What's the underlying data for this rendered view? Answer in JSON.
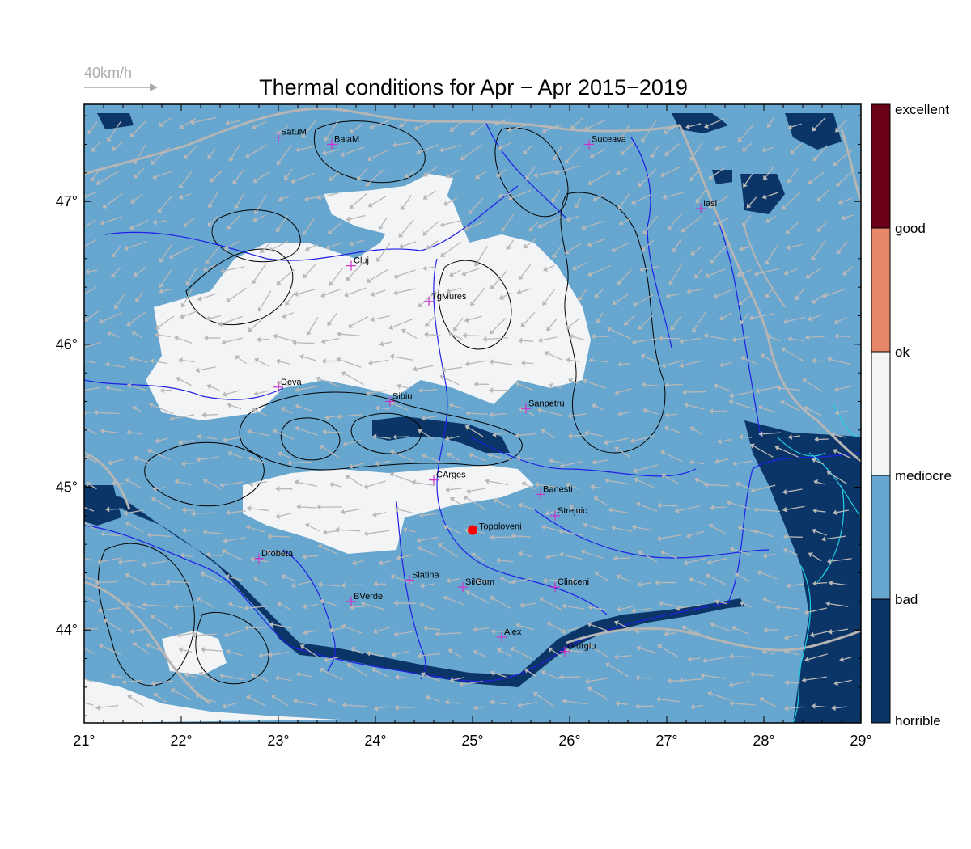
{
  "title": "Thermal conditions for Apr − Apr  2015−2019",
  "wind_reference": "40km/h",
  "colors": {
    "horrible": "#0b3566",
    "bad": "#67a6ce",
    "mediocre": "#f3f4f6",
    "ok": "#e6876a",
    "good": "#b73d3d",
    "excellent": "#6a0119",
    "river": "#1f1fe6",
    "border": "#b5b5b5",
    "wind_arrow": "#b8b8b8",
    "city_marker": "#cc33cc",
    "highlight_marker": "#ff0000"
  },
  "x_ticks": [
    "21°",
    "22°",
    "23°",
    "24°",
    "25°",
    "26°",
    "27°",
    "28°",
    "29°"
  ],
  "y_ticks": [
    "47°",
    "46°",
    "45°",
    "44°"
  ],
  "colorbar": {
    "labels": [
      "excellent",
      "good",
      "ok",
      "mediocre",
      "bad",
      "horrible"
    ]
  },
  "cities": [
    {
      "name": "SatuM",
      "lon": 23.0,
      "lat": 47.45
    },
    {
      "name": "BaiaM",
      "lon": 23.55,
      "lat": 47.4
    },
    {
      "name": "Suceava",
      "lon": 26.2,
      "lat": 47.4
    },
    {
      "name": "Iasi",
      "lon": 27.35,
      "lat": 46.95
    },
    {
      "name": "Cluj",
      "lon": 23.75,
      "lat": 46.55
    },
    {
      "name": "TgMures",
      "lon": 24.55,
      "lat": 46.3
    },
    {
      "name": "Deva",
      "lon": 23.0,
      "lat": 45.7
    },
    {
      "name": "Sibiu",
      "lon": 24.15,
      "lat": 45.6
    },
    {
      "name": "Sanpetru",
      "lon": 25.55,
      "lat": 45.55
    },
    {
      "name": "CArges",
      "lon": 24.6,
      "lat": 45.05
    },
    {
      "name": "Banesti",
      "lon": 25.7,
      "lat": 44.95
    },
    {
      "name": "Strejnic",
      "lon": 25.85,
      "lat": 44.8
    },
    {
      "name": "Drobeta",
      "lon": 22.8,
      "lat": 44.5
    },
    {
      "name": "Slatina",
      "lon": 24.35,
      "lat": 44.35
    },
    {
      "name": "SilGum",
      "lon": 24.9,
      "lat": 44.3
    },
    {
      "name": "Clinceni",
      "lon": 25.85,
      "lat": 44.3
    },
    {
      "name": "BVerde",
      "lon": 23.75,
      "lat": 44.2
    },
    {
      "name": "Alex",
      "lon": 25.3,
      "lat": 43.95
    },
    {
      "name": "Giurgiu",
      "lon": 25.95,
      "lat": 43.85
    }
  ],
  "highlight": {
    "name": "Topoloveni",
    "lon": 25.0,
    "lat": 44.7
  }
}
